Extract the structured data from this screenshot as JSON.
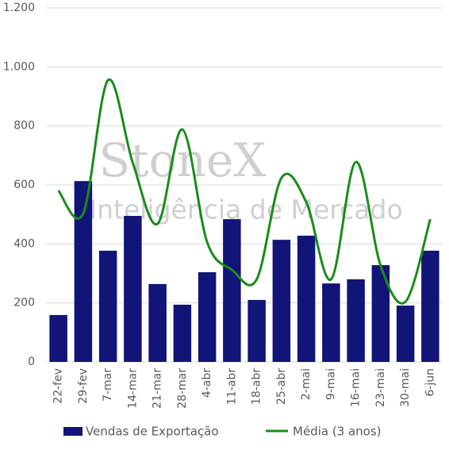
{
  "chart_data": {
    "type": "bar-line",
    "watermark": [
      "StoneX",
      "Inteligência de Mercado"
    ],
    "categories": [
      "22-fev",
      "29-fev",
      "7-mar",
      "14-mar",
      "21-mar",
      "28-mar",
      "4-abr",
      "11-abr",
      "18-abr",
      "25-abr",
      "2-mai",
      "9-mai",
      "16-mai",
      "23-mai",
      "30-mai",
      "6-jun"
    ],
    "series": [
      {
        "name": "Vendas de Exportação",
        "type": "bar",
        "color": "#111577",
        "values": [
          159,
          613,
          377,
          495,
          264,
          194,
          304,
          484,
          210,
          414,
          428,
          266,
          280,
          328,
          191,
          377
        ]
      },
      {
        "name": "Média (3 anos)",
        "type": "line",
        "color": "#1a8c1a",
        "values": [
          581,
          503,
          955,
          675,
          468,
          788,
          406,
          312,
          280,
          624,
          541,
          280,
          678,
          326,
          204,
          484
        ]
      }
    ],
    "ylim": [
      0,
      1200
    ],
    "yticks": [
      0,
      200,
      400,
      600,
      800,
      {
        "value": 1000,
        "label": "1.000"
      },
      {
        "value": 1200,
        "label": "1.200"
      }
    ],
    "grid": true,
    "legend": "bottom"
  }
}
